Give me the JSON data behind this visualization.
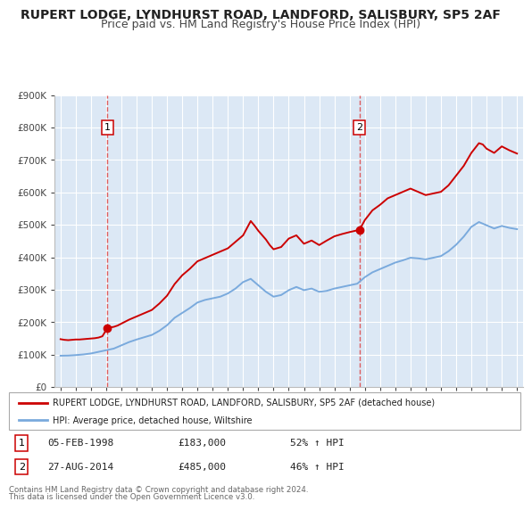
{
  "title": "RUPERT LODGE, LYNDHURST ROAD, LANDFORD, SALISBURY, SP5 2AF",
  "subtitle": "Price paid vs. HM Land Registry's House Price Index (HPI)",
  "title_fontsize": 10,
  "subtitle_fontsize": 9,
  "background_color": "#ffffff",
  "plot_bg_color": "#dce8f5",
  "grid_color": "#ffffff",
  "red_line_color": "#cc0000",
  "blue_line_color": "#7aaadd",
  "marker_color": "#cc0000",
  "vline_color": "#dd4444",
  "ylim": [
    0,
    900000
  ],
  "yticks": [
    0,
    100000,
    200000,
    300000,
    400000,
    500000,
    600000,
    700000,
    800000,
    900000
  ],
  "ytick_labels": [
    "£0",
    "£100K",
    "£200K",
    "£300K",
    "£400K",
    "£500K",
    "£600K",
    "£700K",
    "£800K",
    "£900K"
  ],
  "xlim_start": 1994.6,
  "xlim_end": 2025.4,
  "sale1_x": 1998.09,
  "sale1_y": 183000,
  "sale1_label": "1",
  "sale1_date": "05-FEB-1998",
  "sale1_price": "£183,000",
  "sale1_hpi": "52% ↑ HPI",
  "sale2_x": 2014.65,
  "sale2_y": 485000,
  "sale2_label": "2",
  "sale2_date": "27-AUG-2014",
  "sale2_price": "£485,000",
  "sale2_hpi": "46% ↑ HPI",
  "legend_line1": "RUPERT LODGE, LYNDHURST ROAD, LANDFORD, SALISBURY, SP5 2AF (detached house)",
  "legend_line2": "HPI: Average price, detached house, Wiltshire",
  "footer1": "Contains HM Land Registry data © Crown copyright and database right 2024.",
  "footer2": "This data is licensed under the Open Government Licence v3.0.",
  "red_hpi_data": [
    [
      1995.0,
      148000
    ],
    [
      1995.25,
      146000
    ],
    [
      1995.5,
      145000
    ],
    [
      1995.75,
      146000
    ],
    [
      1996.0,
      147000
    ],
    [
      1996.25,
      147000
    ],
    [
      1996.5,
      148000
    ],
    [
      1996.75,
      149000
    ],
    [
      1997.0,
      150000
    ],
    [
      1997.25,
      151000
    ],
    [
      1997.5,
      153000
    ],
    [
      1997.75,
      157000
    ],
    [
      1998.09,
      183000
    ],
    [
      1998.5,
      186000
    ],
    [
      1998.75,
      190000
    ],
    [
      1999.0,
      196000
    ],
    [
      1999.5,
      208000
    ],
    [
      2000.0,
      218000
    ],
    [
      2000.5,
      228000
    ],
    [
      2001.0,
      238000
    ],
    [
      2001.5,
      258000
    ],
    [
      2002.0,
      282000
    ],
    [
      2002.5,
      318000
    ],
    [
      2003.0,
      345000
    ],
    [
      2003.5,
      365000
    ],
    [
      2004.0,
      388000
    ],
    [
      2004.5,
      398000
    ],
    [
      2005.0,
      408000
    ],
    [
      2005.5,
      418000
    ],
    [
      2006.0,
      428000
    ],
    [
      2006.5,
      448000
    ],
    [
      2007.0,
      468000
    ],
    [
      2007.5,
      512000
    ],
    [
      2007.75,
      498000
    ],
    [
      2008.0,
      482000
    ],
    [
      2008.5,
      455000
    ],
    [
      2008.75,
      438000
    ],
    [
      2009.0,
      425000
    ],
    [
      2009.5,
      432000
    ],
    [
      2010.0,
      458000
    ],
    [
      2010.5,
      468000
    ],
    [
      2011.0,
      442000
    ],
    [
      2011.5,
      452000
    ],
    [
      2012.0,
      438000
    ],
    [
      2012.5,
      452000
    ],
    [
      2013.0,
      465000
    ],
    [
      2013.5,
      472000
    ],
    [
      2014.0,
      478000
    ],
    [
      2014.65,
      485000
    ],
    [
      2015.0,
      515000
    ],
    [
      2015.5,
      545000
    ],
    [
      2016.0,
      562000
    ],
    [
      2016.5,
      582000
    ],
    [
      2017.0,
      592000
    ],
    [
      2017.5,
      602000
    ],
    [
      2018.0,
      612000
    ],
    [
      2018.5,
      602000
    ],
    [
      2019.0,
      592000
    ],
    [
      2019.5,
      597000
    ],
    [
      2020.0,
      602000
    ],
    [
      2020.5,
      622000
    ],
    [
      2021.0,
      652000
    ],
    [
      2021.5,
      682000
    ],
    [
      2022.0,
      722000
    ],
    [
      2022.5,
      752000
    ],
    [
      2022.75,
      748000
    ],
    [
      2023.0,
      735000
    ],
    [
      2023.5,
      722000
    ],
    [
      2024.0,
      742000
    ],
    [
      2024.5,
      730000
    ],
    [
      2025.0,
      720000
    ]
  ],
  "blue_hpi_data": [
    [
      1995.0,
      97000
    ],
    [
      1995.5,
      97500
    ],
    [
      1996.0,
      99000
    ],
    [
      1996.5,
      101000
    ],
    [
      1997.0,
      104000
    ],
    [
      1997.5,
      109000
    ],
    [
      1998.0,
      114000
    ],
    [
      1998.5,
      119000
    ],
    [
      1999.0,
      129000
    ],
    [
      1999.5,
      139000
    ],
    [
      2000.0,
      147000
    ],
    [
      2000.5,
      154000
    ],
    [
      2001.0,
      161000
    ],
    [
      2001.5,
      174000
    ],
    [
      2002.0,
      191000
    ],
    [
      2002.5,
      214000
    ],
    [
      2003.0,
      229000
    ],
    [
      2003.5,
      244000
    ],
    [
      2004.0,
      261000
    ],
    [
      2004.5,
      269000
    ],
    [
      2005.0,
      274000
    ],
    [
      2005.5,
      279000
    ],
    [
      2006.0,
      289000
    ],
    [
      2006.5,
      304000
    ],
    [
      2007.0,
      324000
    ],
    [
      2007.5,
      334000
    ],
    [
      2008.0,
      314000
    ],
    [
      2008.5,
      294000
    ],
    [
      2009.0,
      279000
    ],
    [
      2009.5,
      284000
    ],
    [
      2010.0,
      299000
    ],
    [
      2010.5,
      309000
    ],
    [
      2011.0,
      299000
    ],
    [
      2011.5,
      304000
    ],
    [
      2012.0,
      294000
    ],
    [
      2012.5,
      297000
    ],
    [
      2013.0,
      304000
    ],
    [
      2013.5,
      309000
    ],
    [
      2014.0,
      314000
    ],
    [
      2014.5,
      319000
    ],
    [
      2015.0,
      339000
    ],
    [
      2015.5,
      354000
    ],
    [
      2016.0,
      364000
    ],
    [
      2016.5,
      374000
    ],
    [
      2017.0,
      384000
    ],
    [
      2017.5,
      391000
    ],
    [
      2018.0,
      399000
    ],
    [
      2018.5,
      397000
    ],
    [
      2019.0,
      394000
    ],
    [
      2019.5,
      399000
    ],
    [
      2020.0,
      404000
    ],
    [
      2020.5,
      419000
    ],
    [
      2021.0,
      439000
    ],
    [
      2021.5,
      464000
    ],
    [
      2022.0,
      494000
    ],
    [
      2022.5,
      509000
    ],
    [
      2023.0,
      499000
    ],
    [
      2023.5,
      489000
    ],
    [
      2024.0,
      497000
    ],
    [
      2024.5,
      491000
    ],
    [
      2025.0,
      487000
    ]
  ]
}
